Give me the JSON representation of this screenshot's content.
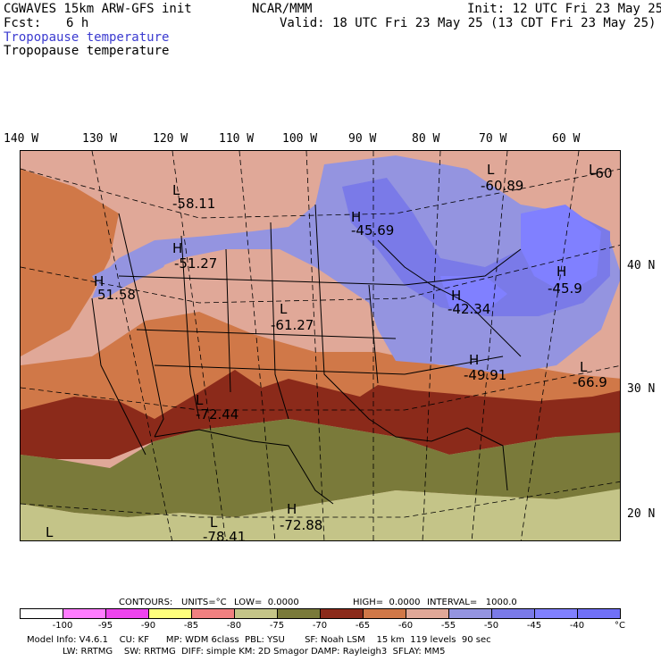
{
  "header": {
    "model": "CGWAVES 15km ARW-GFS init",
    "org": "NCAR/MMM",
    "init": "Init: 12 UTC Fri 23 May 25",
    "fcst_label": "Fcst:",
    "fcst_value": "6 h",
    "valid": "Valid: 18 UTC Fri 23 May 25 (13 CDT Fri 23 May 25)",
    "field_color": "Tropopause temperature",
    "field_black": "Tropopause temperature"
  },
  "longitudes": [
    "140 W",
    "130 W",
    "120 W",
    "110 W",
    "100 W",
    "90 W",
    "80 W",
    "70 W",
    "60 W"
  ],
  "latitudes": [
    "40 N",
    "30 N",
    "20 N"
  ],
  "extrema": [
    {
      "letter": "L",
      "value": "-58.11"
    },
    {
      "letter": "H",
      "value": "-45.69"
    },
    {
      "letter": "L",
      "value": "-60.89"
    },
    {
      "letter": "L",
      "value": "-60"
    },
    {
      "letter": "H",
      "value": "-51.27"
    },
    {
      "letter": "H",
      "value": "51.58"
    },
    {
      "letter": "H",
      "value": "-45.9"
    },
    {
      "letter": "H",
      "value": "-42.34"
    },
    {
      "letter": "L",
      "value": "-61.27"
    },
    {
      "letter": "H",
      "value": "-49.91"
    },
    {
      "letter": "L",
      "value": "-66.9"
    },
    {
      "letter": "L",
      "value": "-72.44"
    },
    {
      "letter": "H",
      "value": "-72.88"
    },
    {
      "letter": "L",
      "value": "-78.41"
    },
    {
      "letter": "L",
      "value": ""
    }
  ],
  "contour_info": {
    "contours": "CONTOURS:",
    "units": "UNITS=°C",
    "low": "LOW=  0.0000",
    "high": "HIGH=  0.0000",
    "interval": "INTERVAL=   1000.0"
  },
  "colorbar": {
    "colors": [
      "#ffffff",
      "#ff7cff",
      "#ee44ee",
      "#ffff7c",
      "#f08080",
      "#c4c488",
      "#7a7a3a",
      "#8b2a1a",
      "#d07848",
      "#e0a898",
      "#9494e0",
      "#7a7ae8",
      "#8080ff",
      "#7070f8"
    ],
    "ticks": [
      "-100",
      "-95",
      "-90",
      "-85",
      "-80",
      "-75",
      "-70",
      "-65",
      "-60",
      "-55",
      "-50",
      "-45",
      "-40",
      "°C"
    ]
  },
  "footer": {
    "line1": "Model Info: V4.6.1    CU: KF      MP: WDM 6class  PBL: YSU       SF: Noah LSM    15 km  119 levels  90 sec",
    "line2": "LW: RRTMG    SW: RRTMG  DIFF: simple KM: 2D Smagor DAMP: Rayleigh3  SFLAY: MM5"
  }
}
